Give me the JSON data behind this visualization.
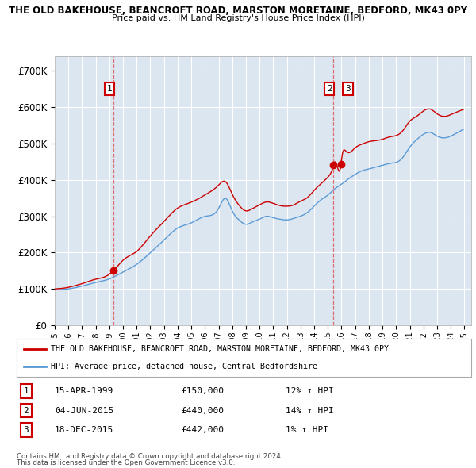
{
  "title1": "THE OLD BAKEHOUSE, BEANCROFT ROAD, MARSTON MORETAINE, BEDFORD, MK43 0PY",
  "title2": "Price paid vs. HM Land Registry's House Price Index (HPI)",
  "ylabel_ticks": [
    "£0",
    "£100K",
    "£200K",
    "£300K",
    "£400K",
    "£500K",
    "£600K",
    "£700K"
  ],
  "ytick_vals": [
    0,
    100000,
    200000,
    300000,
    400000,
    500000,
    600000,
    700000
  ],
  "ylim": [
    0,
    740000
  ],
  "xlim_start": 1995.0,
  "xlim_end": 2025.5,
  "hpi_color": "#5b9bd5",
  "price_color": "#cc0000",
  "dashed_color": "#e06060",
  "plot_bg_color": "#dce6f1",
  "transaction1": {
    "year": 1999.29,
    "price": 150000,
    "label": "1"
  },
  "transaction2": {
    "year": 2015.42,
    "price": 440000,
    "label": "2"
  },
  "transaction3": {
    "year": 2015.96,
    "price": 442000,
    "label": "3"
  },
  "legend_line1": "THE OLD BAKEHOUSE, BEANCROFT ROAD, MARSTON MORETAINE, BEDFORD, MK43 0PY",
  "legend_line2": "HPI: Average price, detached house, Central Bedfordshire",
  "table_rows": [
    [
      "1",
      "15-APR-1999",
      "£150,000",
      "12% ↑ HPI"
    ],
    [
      "2",
      "04-JUN-2015",
      "£440,000",
      "14% ↑ HPI"
    ],
    [
      "3",
      "18-DEC-2015",
      "£442,000",
      "1% ↑ HPI"
    ]
  ],
  "footer1": "Contains HM Land Registry data © Crown copyright and database right 2024.",
  "footer2": "This data is licensed under the Open Government Licence v3.0.",
  "background_color": "#ffffff",
  "grid_color": "#ffffff"
}
